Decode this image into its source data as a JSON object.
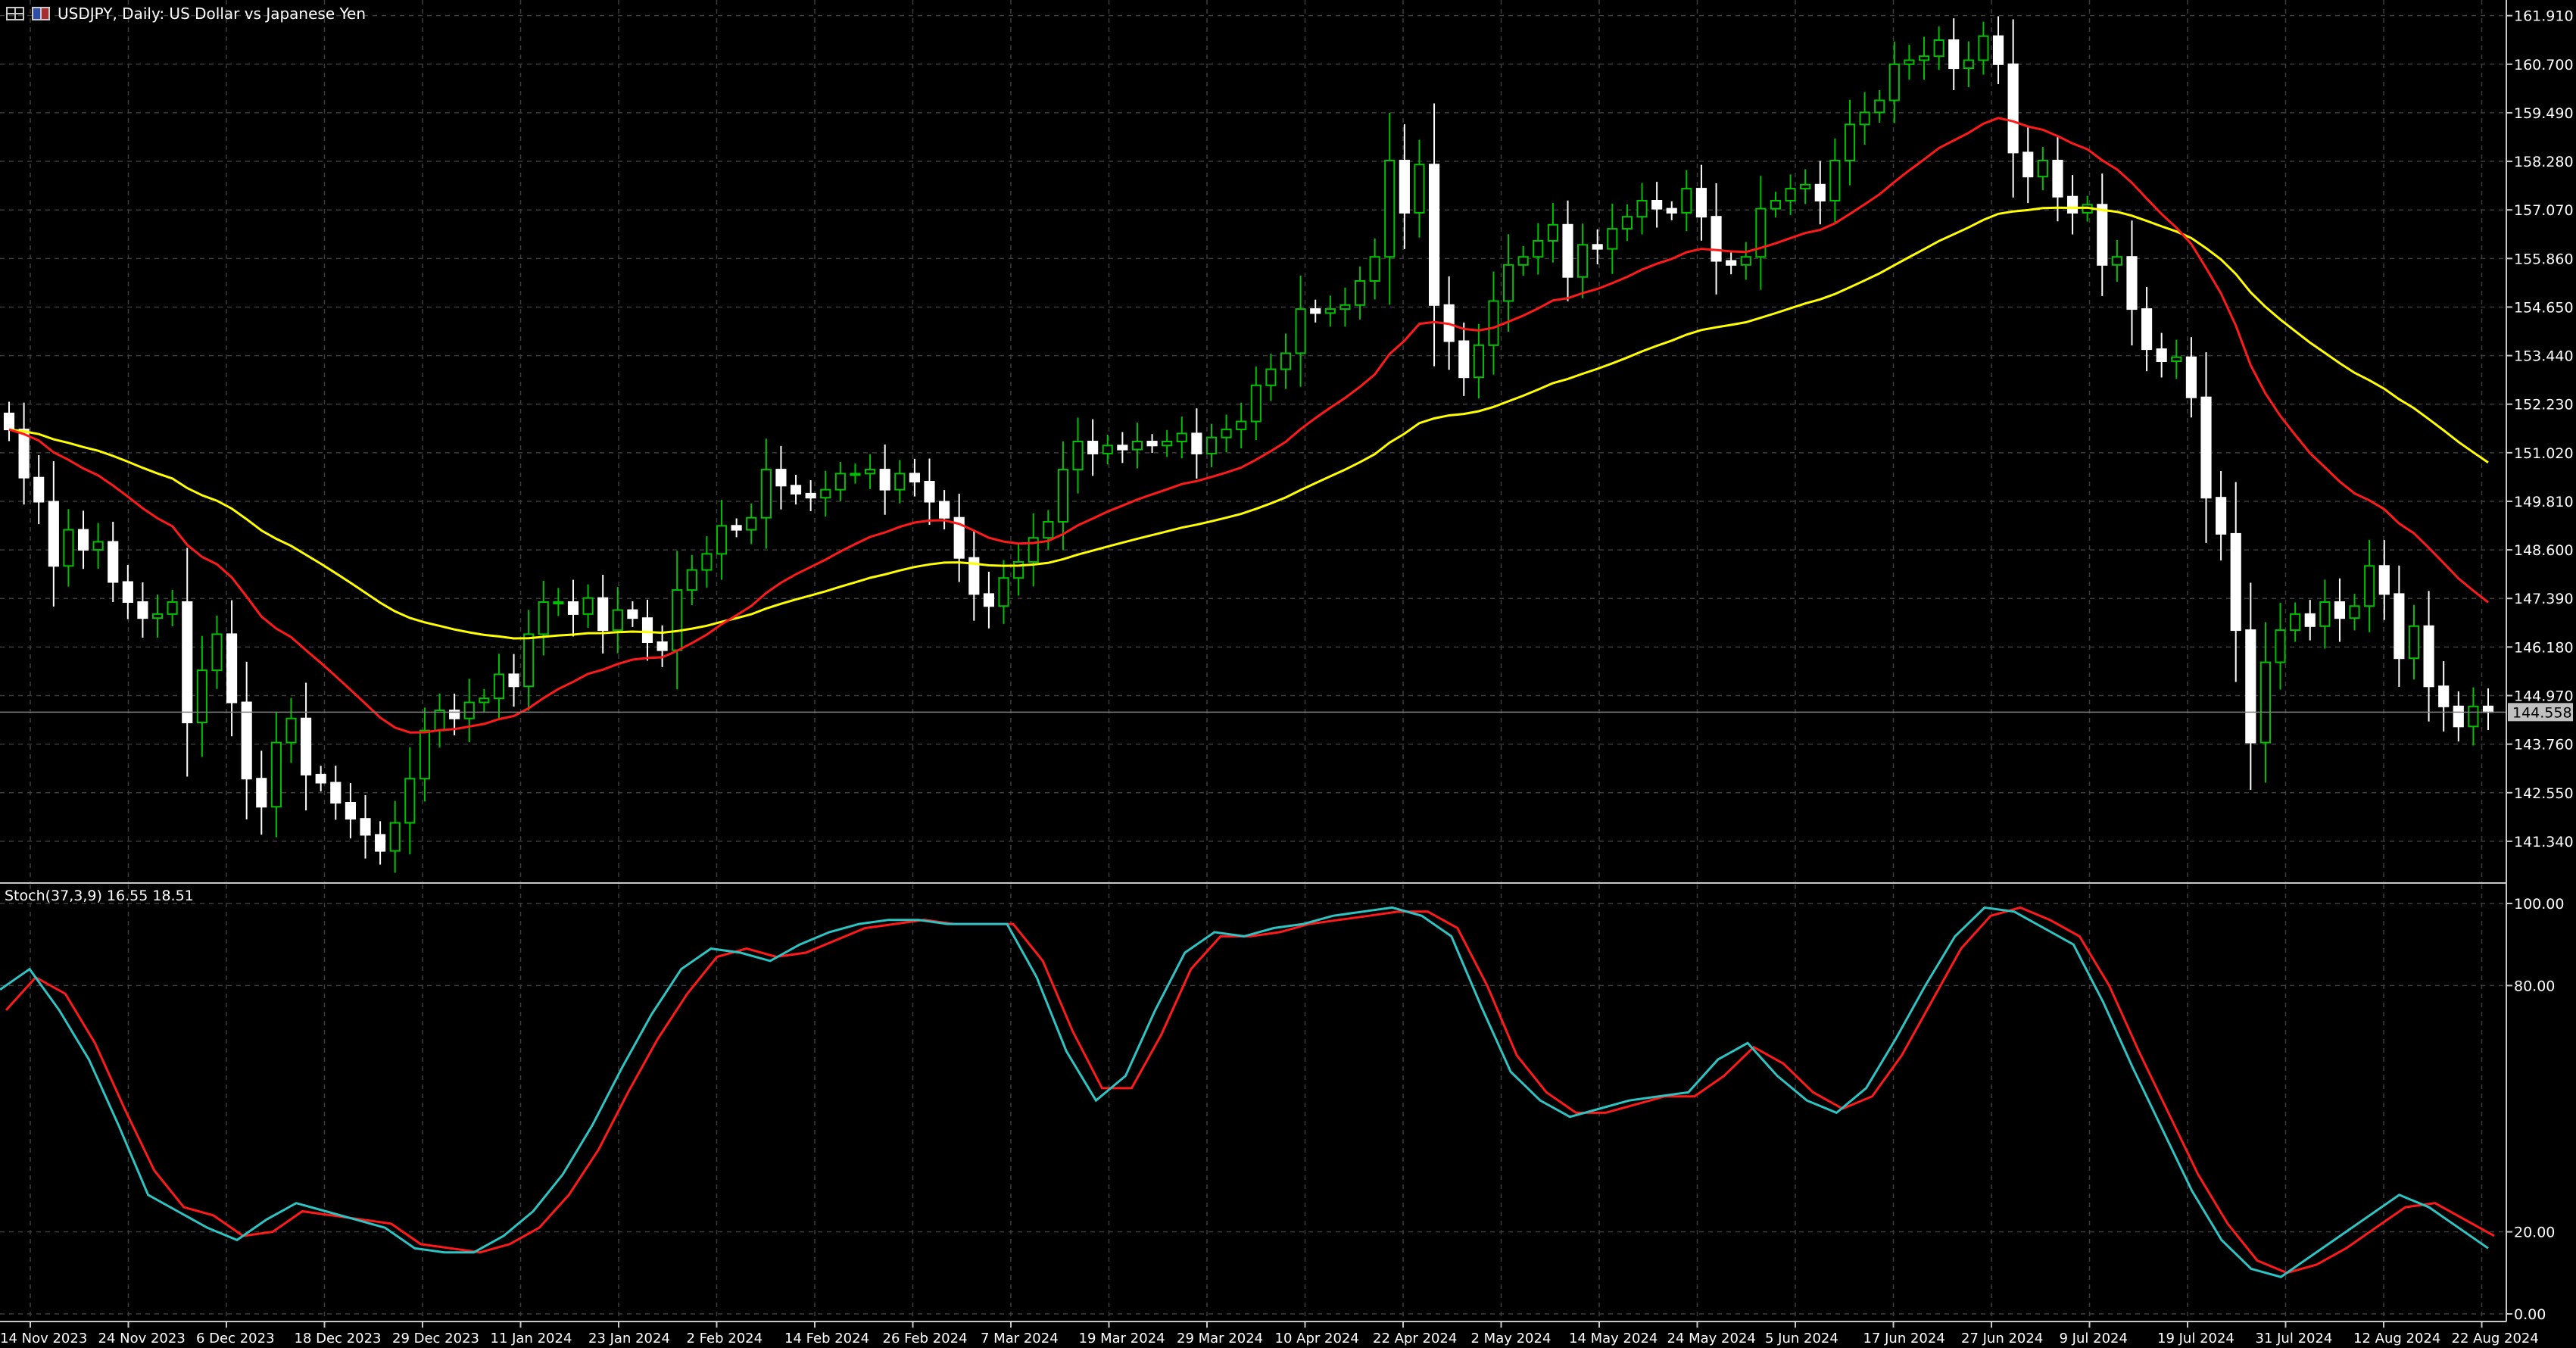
{
  "header": {
    "symbol": "USDJPY",
    "timeframe": "Daily",
    "description": "US Dollar vs Japanese Yen",
    "title_text": "USDJPY, Daily:  US Dollar vs Japanese Yen"
  },
  "stoch_label": "Stoch(37,3,9) 16.55 18.51",
  "current_price_label": "144.558",
  "colors": {
    "background": "#000000",
    "grid": "#3c3c3c",
    "candle_up": "#00c000",
    "candle_down": "#ffffff",
    "ma_fast": "#ff1a1a",
    "ma_slow": "#ffff00",
    "stoch_main": "#2ec4c4",
    "stoch_signal": "#ff1a1a",
    "price_box": "#c0c0c0"
  },
  "chart_data": [
    {
      "type": "candlestick",
      "panel": "price",
      "symbol": "USDJPY",
      "timeframe": "Daily",
      "y_range": [
        140.3,
        162.3
      ],
      "y_ticks": [
        "161.910",
        "160.700",
        "159.490",
        "158.280",
        "157.070",
        "155.860",
        "154.650",
        "153.440",
        "152.230",
        "151.020",
        "149.810",
        "148.600",
        "147.390",
        "146.180",
        "144.970",
        "143.760",
        "142.550",
        "141.340"
      ],
      "x_labels": [
        "14 Nov 2023",
        "24 Nov 2023",
        "6 Dec 2023",
        "18 Dec 2023",
        "29 Dec 2023",
        "11 Jan 2024",
        "23 Jan 2024",
        "2 Feb 2024",
        "14 Feb 2024",
        "26 Feb 2024",
        "7 Mar 2024",
        "19 Mar 2024",
        "29 Mar 2024",
        "10 Apr 2024",
        "22 Apr 2024",
        "2 May 2024",
        "14 May 2024",
        "24 May 2024",
        "5 Jun 2024",
        "17 Jun 2024",
        "27 Jun 2024",
        "9 Jul 2024",
        "19 Jul 2024",
        "31 Jul 2024",
        "12 Aug 2024",
        "22 Aug 2024"
      ],
      "grid": true,
      "current_price": 144.558,
      "closes": [
        151.6,
        150.4,
        149.8,
        148.2,
        149.1,
        148.6,
        148.8,
        147.8,
        147.3,
        146.9,
        147.0,
        147.3,
        144.3,
        145.6,
        146.5,
        144.8,
        142.9,
        142.2,
        143.8,
        144.4,
        143.0,
        142.8,
        142.3,
        141.9,
        141.5,
        141.1,
        141.8,
        142.9,
        144.1,
        144.6,
        144.4,
        144.8,
        144.9,
        145.5,
        145.2,
        146.5,
        147.3,
        147.3,
        147.0,
        147.4,
        146.6,
        147.1,
        146.9,
        146.3,
        146.1,
        147.6,
        148.1,
        148.5,
        149.2,
        149.1,
        149.4,
        150.6,
        150.2,
        150.0,
        149.9,
        150.1,
        150.5,
        150.5,
        150.6,
        150.1,
        150.5,
        150.3,
        149.8,
        149.4,
        148.4,
        147.5,
        147.2,
        147.9,
        148.3,
        148.9,
        149.3,
        150.6,
        151.3,
        151.0,
        151.2,
        151.1,
        151.3,
        151.2,
        151.3,
        151.5,
        151.0,
        151.4,
        151.6,
        151.8,
        152.7,
        153.1,
        153.5,
        154.6,
        154.5,
        154.6,
        154.7,
        155.3,
        155.9,
        158.3,
        157.0,
        158.2,
        154.7,
        153.8,
        152.9,
        153.7,
        154.8,
        155.7,
        155.9,
        156.3,
        156.7,
        155.4,
        156.2,
        156.1,
        156.6,
        156.9,
        157.3,
        157.1,
        157.0,
        157.6,
        156.9,
        155.8,
        155.7,
        155.9,
        157.1,
        157.3,
        157.6,
        157.7,
        157.3,
        158.3,
        159.2,
        159.5,
        159.8,
        160.7,
        160.8,
        160.9,
        161.3,
        160.6,
        160.8,
        161.4,
        160.7,
        158.5,
        157.9,
        158.3,
        157.4,
        157.0,
        157.2,
        155.7,
        155.9,
        154.6,
        153.6,
        153.3,
        153.4,
        152.4,
        149.9,
        149.0,
        146.6,
        143.8,
        145.8,
        146.6,
        147.0,
        146.7,
        147.3,
        146.9,
        147.2,
        148.2,
        147.5,
        145.9,
        146.7,
        145.2,
        144.7,
        144.2,
        144.7,
        144.56
      ]
    },
    {
      "type": "line",
      "panel": "stochastic",
      "name": "Stoch(37,3,9) 16.55 18.51",
      "y_range": [
        0,
        100
      ],
      "y_ticks": [
        "100.00",
        "80.00",
        "20.00",
        "0.00"
      ],
      "main_value": 16.55,
      "signal_value": 18.51,
      "main": [
        79,
        84,
        74,
        62,
        46,
        29,
        25,
        21,
        18,
        23,
        27,
        25,
        23,
        21,
        16,
        15,
        15,
        19,
        25,
        34,
        46,
        60,
        73,
        84,
        89,
        88,
        86,
        90,
        93,
        95,
        96,
        96,
        95,
        95,
        95,
        82,
        64,
        52,
        58,
        74,
        88,
        93,
        92,
        94,
        95,
        97,
        98,
        99,
        97,
        92,
        75,
        59,
        52,
        48,
        50,
        52,
        53,
        54,
        62,
        66,
        58,
        52,
        49,
        55,
        67,
        80,
        92,
        99,
        98,
        94,
        90,
        76,
        60,
        45,
        30,
        18,
        11,
        9,
        14,
        19,
        24,
        29,
        26,
        21,
        16
      ],
      "signal": [
        74,
        82,
        78,
        66,
        50,
        35,
        26,
        24,
        19,
        20,
        25,
        24,
        23,
        22,
        17,
        16,
        15,
        17,
        21,
        29,
        40,
        54,
        67,
        78,
        87,
        89,
        87,
        88,
        91,
        94,
        95,
        96,
        95,
        95,
        95,
        86,
        69,
        55,
        55,
        68,
        84,
        92,
        92,
        93,
        95,
        96,
        97,
        98,
        98,
        94,
        80,
        63,
        54,
        49,
        49,
        51,
        53,
        53,
        58,
        65,
        61,
        54,
        50,
        53,
        63,
        76,
        89,
        97,
        99,
        96,
        92,
        80,
        64,
        49,
        34,
        22,
        13,
        10,
        12,
        16,
        21,
        26,
        27,
        23,
        19
      ]
    }
  ]
}
